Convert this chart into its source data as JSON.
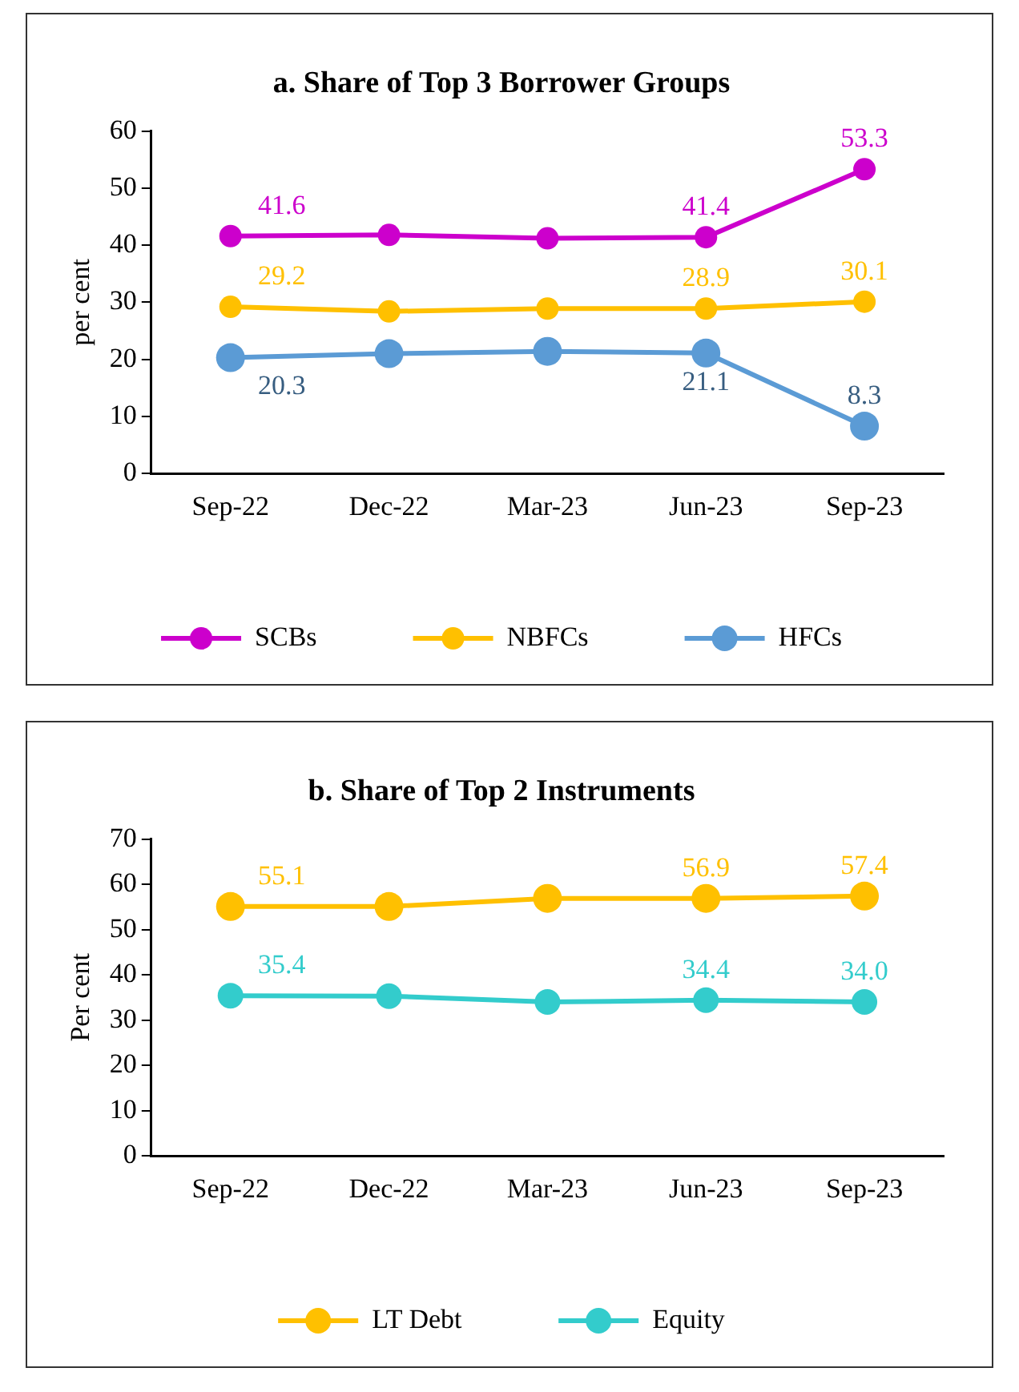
{
  "chart_data": [
    {
      "type": "line",
      "title": "a. Share of Top 3 Borrower Groups",
      "ylabel": "per cent",
      "categories": [
        "Sep-22",
        "Dec-22",
        "Mar-23",
        "Jun-23",
        "Sep-23"
      ],
      "series": [
        {
          "name": "SCBs",
          "color": "#cc00cc",
          "values": [
            41.6,
            41.8,
            41.2,
            41.4,
            53.3
          ],
          "value_labels": [
            "41.6",
            null,
            null,
            "41.4",
            "53.3"
          ]
        },
        {
          "name": "NBFCs",
          "color": "#ffc000",
          "values": [
            29.2,
            28.4,
            28.9,
            28.9,
            30.1
          ],
          "value_labels": [
            "29.2",
            null,
            null,
            "28.9",
            "30.1"
          ]
        },
        {
          "name": "HFCs",
          "color": "#5b9bd5",
          "values": [
            20.3,
            21.0,
            21.4,
            21.1,
            8.3
          ],
          "value_labels": [
            "20.3",
            null,
            null,
            "21.1",
            "8.3"
          ]
        }
      ],
      "ylim": [
        0,
        60
      ],
      "yticks": [
        0,
        10,
        20,
        30,
        40,
        50,
        60
      ],
      "grid": false,
      "legend": "bottom",
      "marker": "circle"
    },
    {
      "type": "line",
      "title": "b. Share of Top 2 Instruments",
      "ylabel": "Per cent",
      "categories": [
        "Sep-22",
        "Dec-22",
        "Mar-23",
        "Jun-23",
        "Sep-23"
      ],
      "series": [
        {
          "name": "LT Debt",
          "color": "#ffc000",
          "values": [
            55.1,
            55.1,
            56.9,
            56.9,
            57.4
          ],
          "value_labels": [
            "55.1",
            null,
            null,
            "56.9",
            "57.4"
          ]
        },
        {
          "name": "Equity",
          "color": "#33cccc",
          "values": [
            35.4,
            35.3,
            34.0,
            34.4,
            34.0
          ],
          "value_labels": [
            "35.4",
            null,
            null,
            "34.4",
            "34.0"
          ]
        }
      ],
      "ylim": [
        0,
        70
      ],
      "yticks": [
        0,
        10,
        20,
        30,
        40,
        50,
        60,
        70
      ],
      "grid": false,
      "legend": "bottom",
      "marker": "circle"
    }
  ]
}
